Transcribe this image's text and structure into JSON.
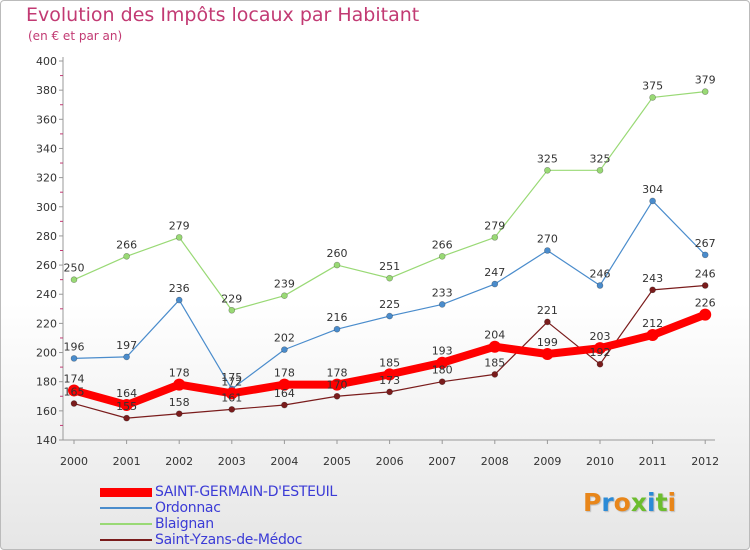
{
  "header": {
    "title": "Evolution des Impôts locaux par Habitant",
    "subtitle": "(en € et par an)"
  },
  "logo": {
    "text": "Proxiti",
    "colors": [
      "#e8861a",
      "#2b8ad6",
      "#e8861a",
      "#6cbd2e",
      "#2b8ad6",
      "#6cbd2e",
      "#e8861a"
    ]
  },
  "chart_data": {
    "type": "line",
    "title": "Evolution des Impôts locaux par Habitant",
    "subtitle": "(en € et par an)",
    "xlabel": "",
    "ylabel": "",
    "categories": [
      "2000",
      "2001",
      "2002",
      "2003",
      "2004",
      "2005",
      "2006",
      "2007",
      "2008",
      "2009",
      "2010",
      "2011",
      "2012"
    ],
    "ylim": [
      140,
      400
    ],
    "yticks": [
      140,
      160,
      180,
      200,
      220,
      240,
      260,
      280,
      300,
      320,
      340,
      360,
      380,
      400
    ],
    "grid": false,
    "legend_position": "bottom-left",
    "series": [
      {
        "name": "SAINT-GERMAIN-D'ESTEUIL",
        "color": "#ff0000",
        "width": "thick",
        "values": [
          174,
          164,
          178,
          172,
          178,
          178,
          185,
          193,
          204,
          199,
          203,
          212,
          226
        ],
        "labels": [
          "174",
          "164",
          "178",
          "172",
          "178",
          "178",
          "185",
          "193",
          "204",
          "199",
          "203",
          "212",
          "226"
        ]
      },
      {
        "name": "Ordonnac",
        "color": "#4a8ccc",
        "width": "thin",
        "values": [
          196,
          197,
          236,
          175,
          202,
          216,
          225,
          233,
          247,
          270,
          246,
          304,
          267
        ],
        "labels": [
          "196",
          "197",
          "236",
          "175",
          "202",
          "216",
          "225",
          "233",
          "247",
          "270",
          "246",
          "304",
          "267"
        ]
      },
      {
        "name": "Blaignan",
        "color": "#99d975",
        "width": "thin",
        "values": [
          250,
          266,
          279,
          229,
          239,
          260,
          251,
          266,
          279,
          325,
          325,
          375,
          379
        ],
        "labels": [
          "250",
          "266",
          "279",
          "229",
          "239",
          "260",
          "251",
          "266",
          "279",
          "325",
          "325",
          "375",
          "379"
        ]
      },
      {
        "name": "Saint-Yzans-de-Médoc",
        "color": "#7a1c1c",
        "width": "thin",
        "values": [
          165,
          155,
          158,
          161,
          164,
          170,
          173,
          180,
          185,
          221,
          192,
          243,
          246
        ],
        "labels": [
          "165",
          "155",
          "158",
          "161",
          "164",
          "170",
          "173",
          "180",
          "185",
          "221",
          "192",
          "243",
          "246"
        ]
      }
    ]
  }
}
